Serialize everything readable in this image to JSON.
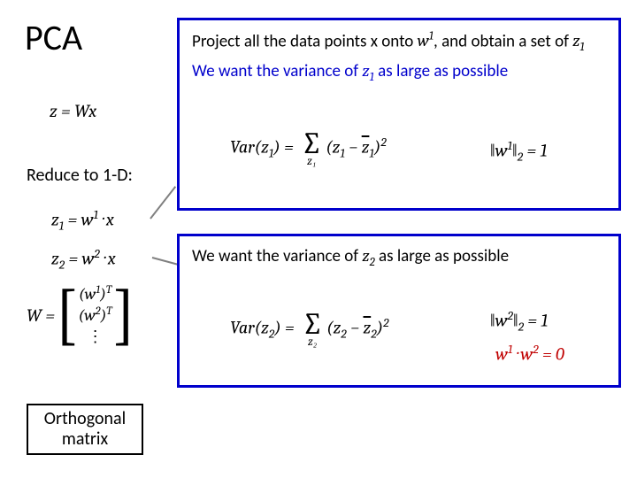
{
  "title": "PCA",
  "eq_main": "z = Wx",
  "reduce_label": "Reduce to 1-D:",
  "eq_z1_lhs": "z",
  "eq_z1_sub": "1",
  "eq_z1_mid": " = w",
  "eq_z1_sup": "1",
  "eq_z1_rhs": " · x",
  "eq_z2_lhs": "z",
  "eq_z2_sub": "2",
  "eq_z2_mid": " = w",
  "eq_z2_sup": "2",
  "eq_z2_rhs": " · x",
  "matrix_W": "W = ",
  "matrix_row1_a": "(w",
  "matrix_row1_sup": "1",
  "matrix_row1_b": ")",
  "matrix_row1_T": "T",
  "matrix_row2_a": "(w",
  "matrix_row2_sup": "2",
  "matrix_row2_b": ")",
  "matrix_row2_T": "T",
  "matrix_dots": "⋮",
  "orthogonal_l1": "Orthogonal",
  "orthogonal_l2": "matrix",
  "box1_proj_a": "Project all the data points x onto ",
  "box1_proj_w": "w",
  "box1_proj_wsup": "1",
  "box1_proj_b": ", and obtain a set of ",
  "box1_proj_z": "z",
  "box1_proj_zsub": "1",
  "box1_want_a": "We want the variance of ",
  "box1_want_z": "z",
  "box1_want_zsub": "1",
  "box1_want_b": " as large as possible",
  "var1_a": "Var(z",
  "var1_sub1": "1",
  "var1_b": ") = ",
  "var1_sigma_sub": "z₁",
  "var1_c": "(z",
  "var1_sub2": "1",
  "var1_d": " − ",
  "var1_zbar": "z",
  "var1_sub3": "1",
  "var1_e": ")",
  "var1_sq": "2",
  "norm1_a": "‖w",
  "norm1_sup": "1",
  "norm1_b": "‖",
  "norm1_sub": "2",
  "norm1_c": " = 1",
  "box2_want_a": "We want the variance of ",
  "box2_want_z": "z",
  "box2_want_zsub": "2",
  "box2_want_b": " as large as possible",
  "var2_a": "Var(z",
  "var2_sub1": "2",
  "var2_b": ") = ",
  "var2_sigma_sub": "z₂",
  "var2_c": "(z",
  "var2_sub2": "2",
  "var2_d": " − ",
  "var2_zbar": "z",
  "var2_sub3": "2",
  "var2_e": ")",
  "var2_sq": "2",
  "norm2_a": "‖w",
  "norm2_sup": "2",
  "norm2_b": "‖",
  "norm2_sub": "2",
  "norm2_c": " = 1",
  "ortho_a": "w",
  "ortho_sup1": "1",
  "ortho_b": " · w",
  "ortho_sup2": "2",
  "ortho_c": " = 0",
  "colors": {
    "box_border": "#0000cc",
    "want_text": "#0000cc",
    "ortho_cond": "#c00000",
    "arrow": "#808080"
  }
}
